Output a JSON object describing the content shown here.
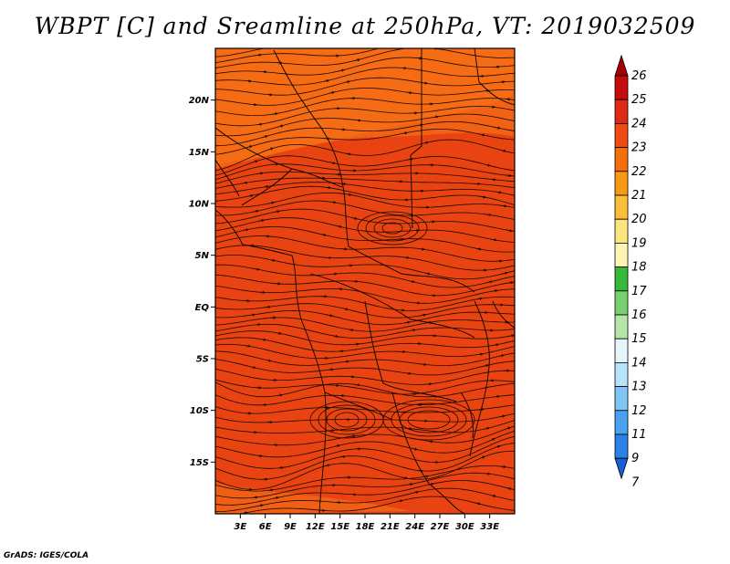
{
  "title": "WBPT [C] and Sreamline at 250hPa, VT: 2019032509",
  "footer": "GrADS: IGES/COLA",
  "map": {
    "lat_range": [
      -20,
      25
    ],
    "lon_range": [
      0,
      36
    ],
    "lat_ticks": [
      {
        "value": 20,
        "label": "20N"
      },
      {
        "value": 15,
        "label": "15N"
      },
      {
        "value": 10,
        "label": "10N"
      },
      {
        "value": 5,
        "label": "5N"
      },
      {
        "value": 0,
        "label": "EQ"
      },
      {
        "value": -5,
        "label": "5S"
      },
      {
        "value": -10,
        "label": "10S"
      },
      {
        "value": -15,
        "label": "15S"
      }
    ],
    "lon_ticks": [
      {
        "value": 3,
        "label": "3E"
      },
      {
        "value": 6,
        "label": "6E"
      },
      {
        "value": 9,
        "label": "9E"
      },
      {
        "value": 12,
        "label": "12E"
      },
      {
        "value": 15,
        "label": "15E"
      },
      {
        "value": 18,
        "label": "18E"
      },
      {
        "value": 21,
        "label": "21E"
      },
      {
        "value": 24,
        "label": "24E"
      },
      {
        "value": 27,
        "label": "27E"
      },
      {
        "value": 30,
        "label": "30E"
      },
      {
        "value": 33,
        "label": "33E"
      }
    ],
    "field_color": "#f15a10",
    "warm_color": "#e23212",
    "cool_color": "#f77b18"
  },
  "colorbar": {
    "levels": [
      "26",
      "25",
      "24",
      "23",
      "22",
      "21",
      "20",
      "19",
      "18",
      "17",
      "16",
      "15",
      "14",
      "13",
      "12",
      "11",
      "9",
      "7"
    ],
    "colors": [
      "#a50000",
      "#c40c0c",
      "#dd2a14",
      "#ee4a12",
      "#f46e0a",
      "#f99a14",
      "#fcbf3c",
      "#fde57e",
      "#fdf6b2",
      "#38b838",
      "#78d06e",
      "#b4e6a8",
      "#e4f6fa",
      "#b8e4fa",
      "#82c6f6",
      "#4aa2ee",
      "#2a82e6",
      "#1a5ed6"
    ]
  }
}
